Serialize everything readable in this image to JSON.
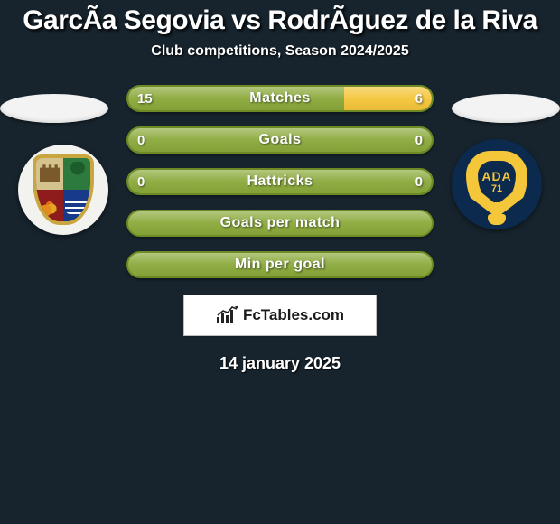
{
  "colors": {
    "background": "#17242e",
    "bar_green": "#8aa93a",
    "bar_green_dark": "#6d8a24",
    "bar_yellow": "#f4c63a",
    "text": "#ffffff"
  },
  "typography": {
    "title_fontsize": 30,
    "subtitle_fontsize": 16,
    "bar_label_fontsize": 16,
    "bar_value_fontsize": 15,
    "date_fontsize": 18
  },
  "header": {
    "player_left": "GarcÃ­a Segovia",
    "vs": "vs",
    "player_right": "RodrÃ­guez de la Riva",
    "subtitle": "Club competitions, Season 2024/2025"
  },
  "clubs": {
    "left": {
      "name": "fuenlabrada",
      "ada_text": "",
      "ada_year": ""
    },
    "right": {
      "name": "alcorcon",
      "ada_text": "ADA",
      "ada_year": "71"
    }
  },
  "bars": [
    {
      "label": "Matches",
      "type": "split",
      "left_val": "15",
      "right_val": "6",
      "left_pct": 71,
      "left_color": "#8aa93a",
      "right_color": "#f4c63a",
      "border_color": "#6d8a24"
    },
    {
      "label": "Goals",
      "type": "split",
      "left_val": "0",
      "right_val": "0",
      "left_pct": 50,
      "left_color": "#8aa93a",
      "right_color": "#8aa93a",
      "border_color": "#6d8a24"
    },
    {
      "label": "Hattricks",
      "type": "split",
      "left_val": "0",
      "right_val": "0",
      "left_pct": 50,
      "left_color": "#8aa93a",
      "right_color": "#8aa93a",
      "border_color": "#6d8a24"
    },
    {
      "label": "Goals per match",
      "type": "full",
      "fill_color": "#8aa93a",
      "border_color": "#6d8a24"
    },
    {
      "label": "Min per goal",
      "type": "full",
      "fill_color": "#8aa93a",
      "border_color": "#6d8a24"
    }
  ],
  "branding": {
    "text": "FcTables.com"
  },
  "date": "14 january 2025"
}
